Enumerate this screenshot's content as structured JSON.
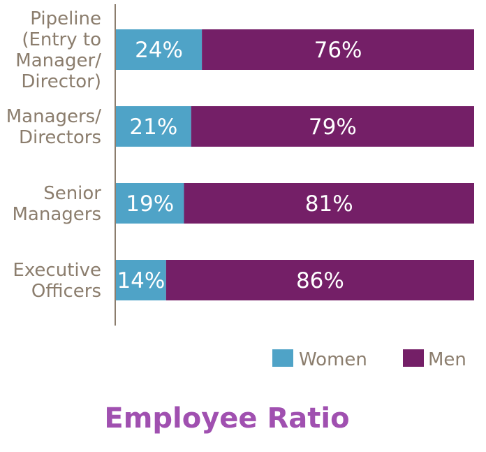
{
  "chart_data": {
    "type": "bar",
    "orientation": "horizontal",
    "stacked": true,
    "title": "Employee Ratio",
    "categories": [
      [
        "Pipeline",
        "(Entry to",
        "Manager/",
        "Director)"
      ],
      [
        "Managers/",
        "Directors"
      ],
      [
        "Senior",
        "Managers"
      ],
      [
        "Executive",
        "Officers"
      ]
    ],
    "series": [
      {
        "name": "Women",
        "color": "#4fa3c7",
        "values": [
          24,
          21,
          19,
          14
        ],
        "labels": [
          "24%",
          "21%",
          "19%",
          "14%"
        ]
      },
      {
        "name": "Men",
        "color": "#741f67",
        "values": [
          76,
          79,
          81,
          86
        ],
        "labels": [
          "76%",
          "79%",
          "81%",
          "86%"
        ]
      }
    ],
    "xlim": [
      0,
      100
    ],
    "grid": false,
    "legend_position": "bottom-right"
  }
}
